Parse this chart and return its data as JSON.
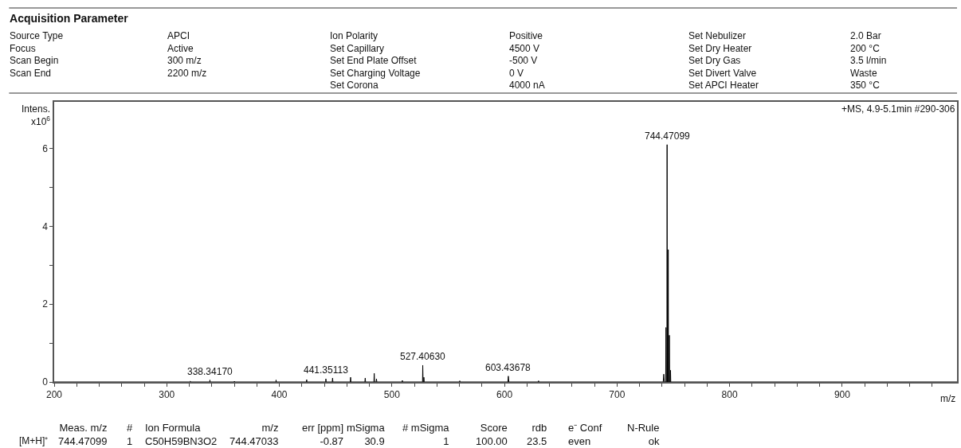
{
  "chart_data": {
    "type": "line",
    "title": "Acquisition Parameter",
    "xlabel": "m/z",
    "ylabel": "Intens.\nx10$^{6}$",
    "xlim": [
      200,
      1002
    ],
    "xticks": [
      200,
      {
        "value": 220,
        "label": null
      },
      {
        "value": 240,
        "label": null
      },
      {
        "value": 260,
        "label": null
      },
      {
        "value": 280,
        "label": null
      },
      300,
      {
        "value": 320,
        "label": null
      },
      {
        "value": 340,
        "label": null
      },
      {
        "value": 360,
        "label": null
      },
      {
        "value": 380,
        "label": null
      },
      400,
      {
        "value": 420,
        "label": null
      },
      {
        "value": 440,
        "label": null
      },
      {
        "value": 460,
        "label": null
      },
      {
        "value": 480,
        "label": null
      },
      500,
      {
        "value": 520,
        "label": null
      },
      {
        "value": 540,
        "label": null
      },
      {
        "value": 560,
        "label": null
      },
      {
        "value": 580,
        "label": null
      },
      600,
      {
        "value": 620,
        "label": null
      },
      {
        "value": 640,
        "label": null
      },
      {
        "value": 660,
        "label": null
      },
      {
        "value": 680,
        "label": null
      },
      700,
      {
        "value": 720,
        "label": null
      },
      {
        "value": 740,
        "label": null
      },
      {
        "value": 760,
        "label": null
      },
      {
        "value": 780,
        "label": null
      },
      800,
      {
        "value": 820,
        "label": null
      },
      {
        "value": 840,
        "label": null
      },
      {
        "value": 860,
        "label": null
      },
      {
        "value": 880,
        "label": null
      },
      900,
      {
        "value": 920,
        "label": null
      },
      {
        "value": 940,
        "label": null
      },
      {
        "value": 960,
        "label": null
      },
      {
        "value": 980,
        "label": null
      }
    ],
    "ylim": [
      0,
      7.2
    ],
    "yticks": [
      0,
      {
        "value": 1,
        "label": null
      },
      2,
      {
        "value": 3,
        "label": null
      },
      4,
      {
        "value": 5,
        "label": null
      },
      6
    ],
    "marker": "none",
    "line_style": "solid",
    "series": [
      {
        "color": "#000000",
        "x": [
          200,
          320,
          321,
          321.2,
          338.2,
          338.34,
          338.5,
          360,
          360.1,
          360.3,
          397,
          397.1,
          397.3,
          424,
          424.3,
          424.6,
          441.2,
          441.35,
          441.6,
          447,
          447.3,
          447.6,
          463,
          463.3,
          463.6,
          476,
          476.3,
          476.6,
          484,
          484.3,
          484.6,
          486,
          486.3,
          486.6,
          509,
          509.3,
          509.6,
          527.2,
          527.41,
          527.7,
          528.2,
          528.4,
          528.7,
          560,
          560.3,
          560.6,
          603,
          603.44,
          603.9,
          630,
          630.3,
          630.6,
          741,
          741.5,
          742,
          743.2,
          743.47,
          743.7,
          744.3,
          744.47,
          744.7,
          745.3,
          745.47,
          745.7,
          746.3,
          746.47,
          746.7,
          747.3,
          747.5,
          747.7,
          1002
        ],
        "values": [
          0,
          0,
          0.02,
          0,
          0,
          0.05,
          0,
          0,
          0.02,
          0,
          0,
          0.05,
          0,
          0,
          0.06,
          0,
          0,
          0.08,
          0,
          0,
          0.1,
          0,
          0,
          0.12,
          0,
          0,
          0.1,
          0,
          0,
          0.22,
          0,
          0,
          0.08,
          0,
          0,
          0.04,
          0,
          0,
          0.43,
          0,
          0,
          0.12,
          0,
          0,
          0.03,
          0,
          0,
          0.15,
          0,
          0,
          0.03,
          0,
          0,
          0.2,
          0,
          0,
          1.4,
          0,
          0,
          6.1,
          0,
          0,
          3.4,
          0,
          0,
          1.2,
          0,
          0,
          0.3,
          0,
          0
        ]
      }
    ],
    "annotations": [
      {
        "text": "338.34170",
        "x": 338.34,
        "y": 0.05
      },
      {
        "text": "441.35113",
        "x": 441.35,
        "y": 0.08
      },
      {
        "text": "527.40630",
        "x": 527.41,
        "y": 0.43
      },
      {
        "text": "603.43678",
        "x": 603.44,
        "y": 0.15
      },
      {
        "text": "744.47099",
        "x": 744.47,
        "y": 6.1
      },
      "+MS, 4.9-5.1min #290-306",
      "Source Type\nFocus\nScan Begin\nScan End",
      "APCI\nActive\n300 m/z\n2200 m/z",
      "Ion Polarity\nSet Capillary\nSet End Plate Offset\nSet Charging Voltage\nSet Corona",
      "Positive\n4500 V\n-500 V\n0 V\n4000 nA",
      "Set Nebulizer\nSet Dry Heater\nSet Dry Gas\nSet Divert Valve\nSet APCI Heater",
      "2.0 Bar\n200 °C\n3.5 l/min\nWaste\n350 °C",
      "\n[M+H]⁺",
      "Meas. m/z\n744.47099",
      "#\n1",
      "Ion Formula\nC50H59BN3O2",
      "m/z\n744.47033",
      "err [ppm]\n-0.87",
      "mSigma\n30.9",
      "# mSigma\n1",
      "Score\n100.00",
      "rdb\n23.5",
      "e⁻ Conf\neven",
      "N-Rule\nok"
    ]
  }
}
